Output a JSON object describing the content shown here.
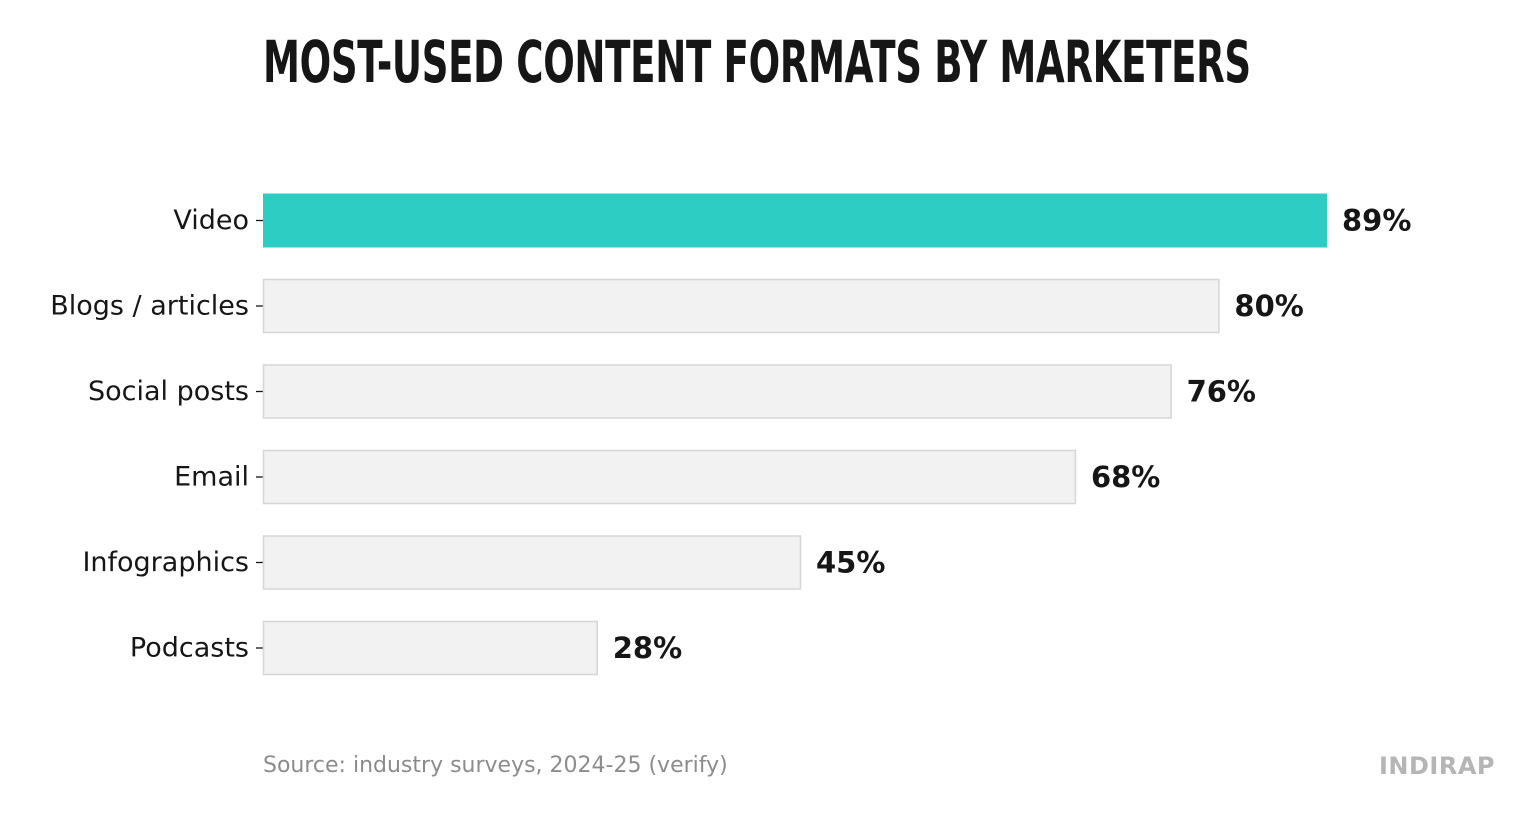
{
  "chart_data": {
    "type": "bar",
    "orientation": "horizontal",
    "title": "MOST-USED CONTENT FORMATS BY MARKETERS",
    "categories": [
      "Video",
      "Blogs / articles",
      "Social posts",
      "Email",
      "Infographics",
      "Podcasts"
    ],
    "values": [
      89,
      80,
      76,
      68,
      45,
      28
    ],
    "value_labels": [
      "89%",
      "80%",
      "76%",
      "68%",
      "45%",
      "28%"
    ],
    "unit": "%",
    "xlim": [
      0,
      100
    ],
    "grid": false,
    "legend": "none",
    "highlight_index": 0,
    "colors": {
      "highlight": "#2ecdc4",
      "default_fill": "#f2f2f2",
      "default_stroke": "#d6d6d6",
      "text": "#161616"
    }
  },
  "footer": {
    "source": "Source: industry surveys, 2024-25 (verify)",
    "brand": "INDIRAP"
  }
}
